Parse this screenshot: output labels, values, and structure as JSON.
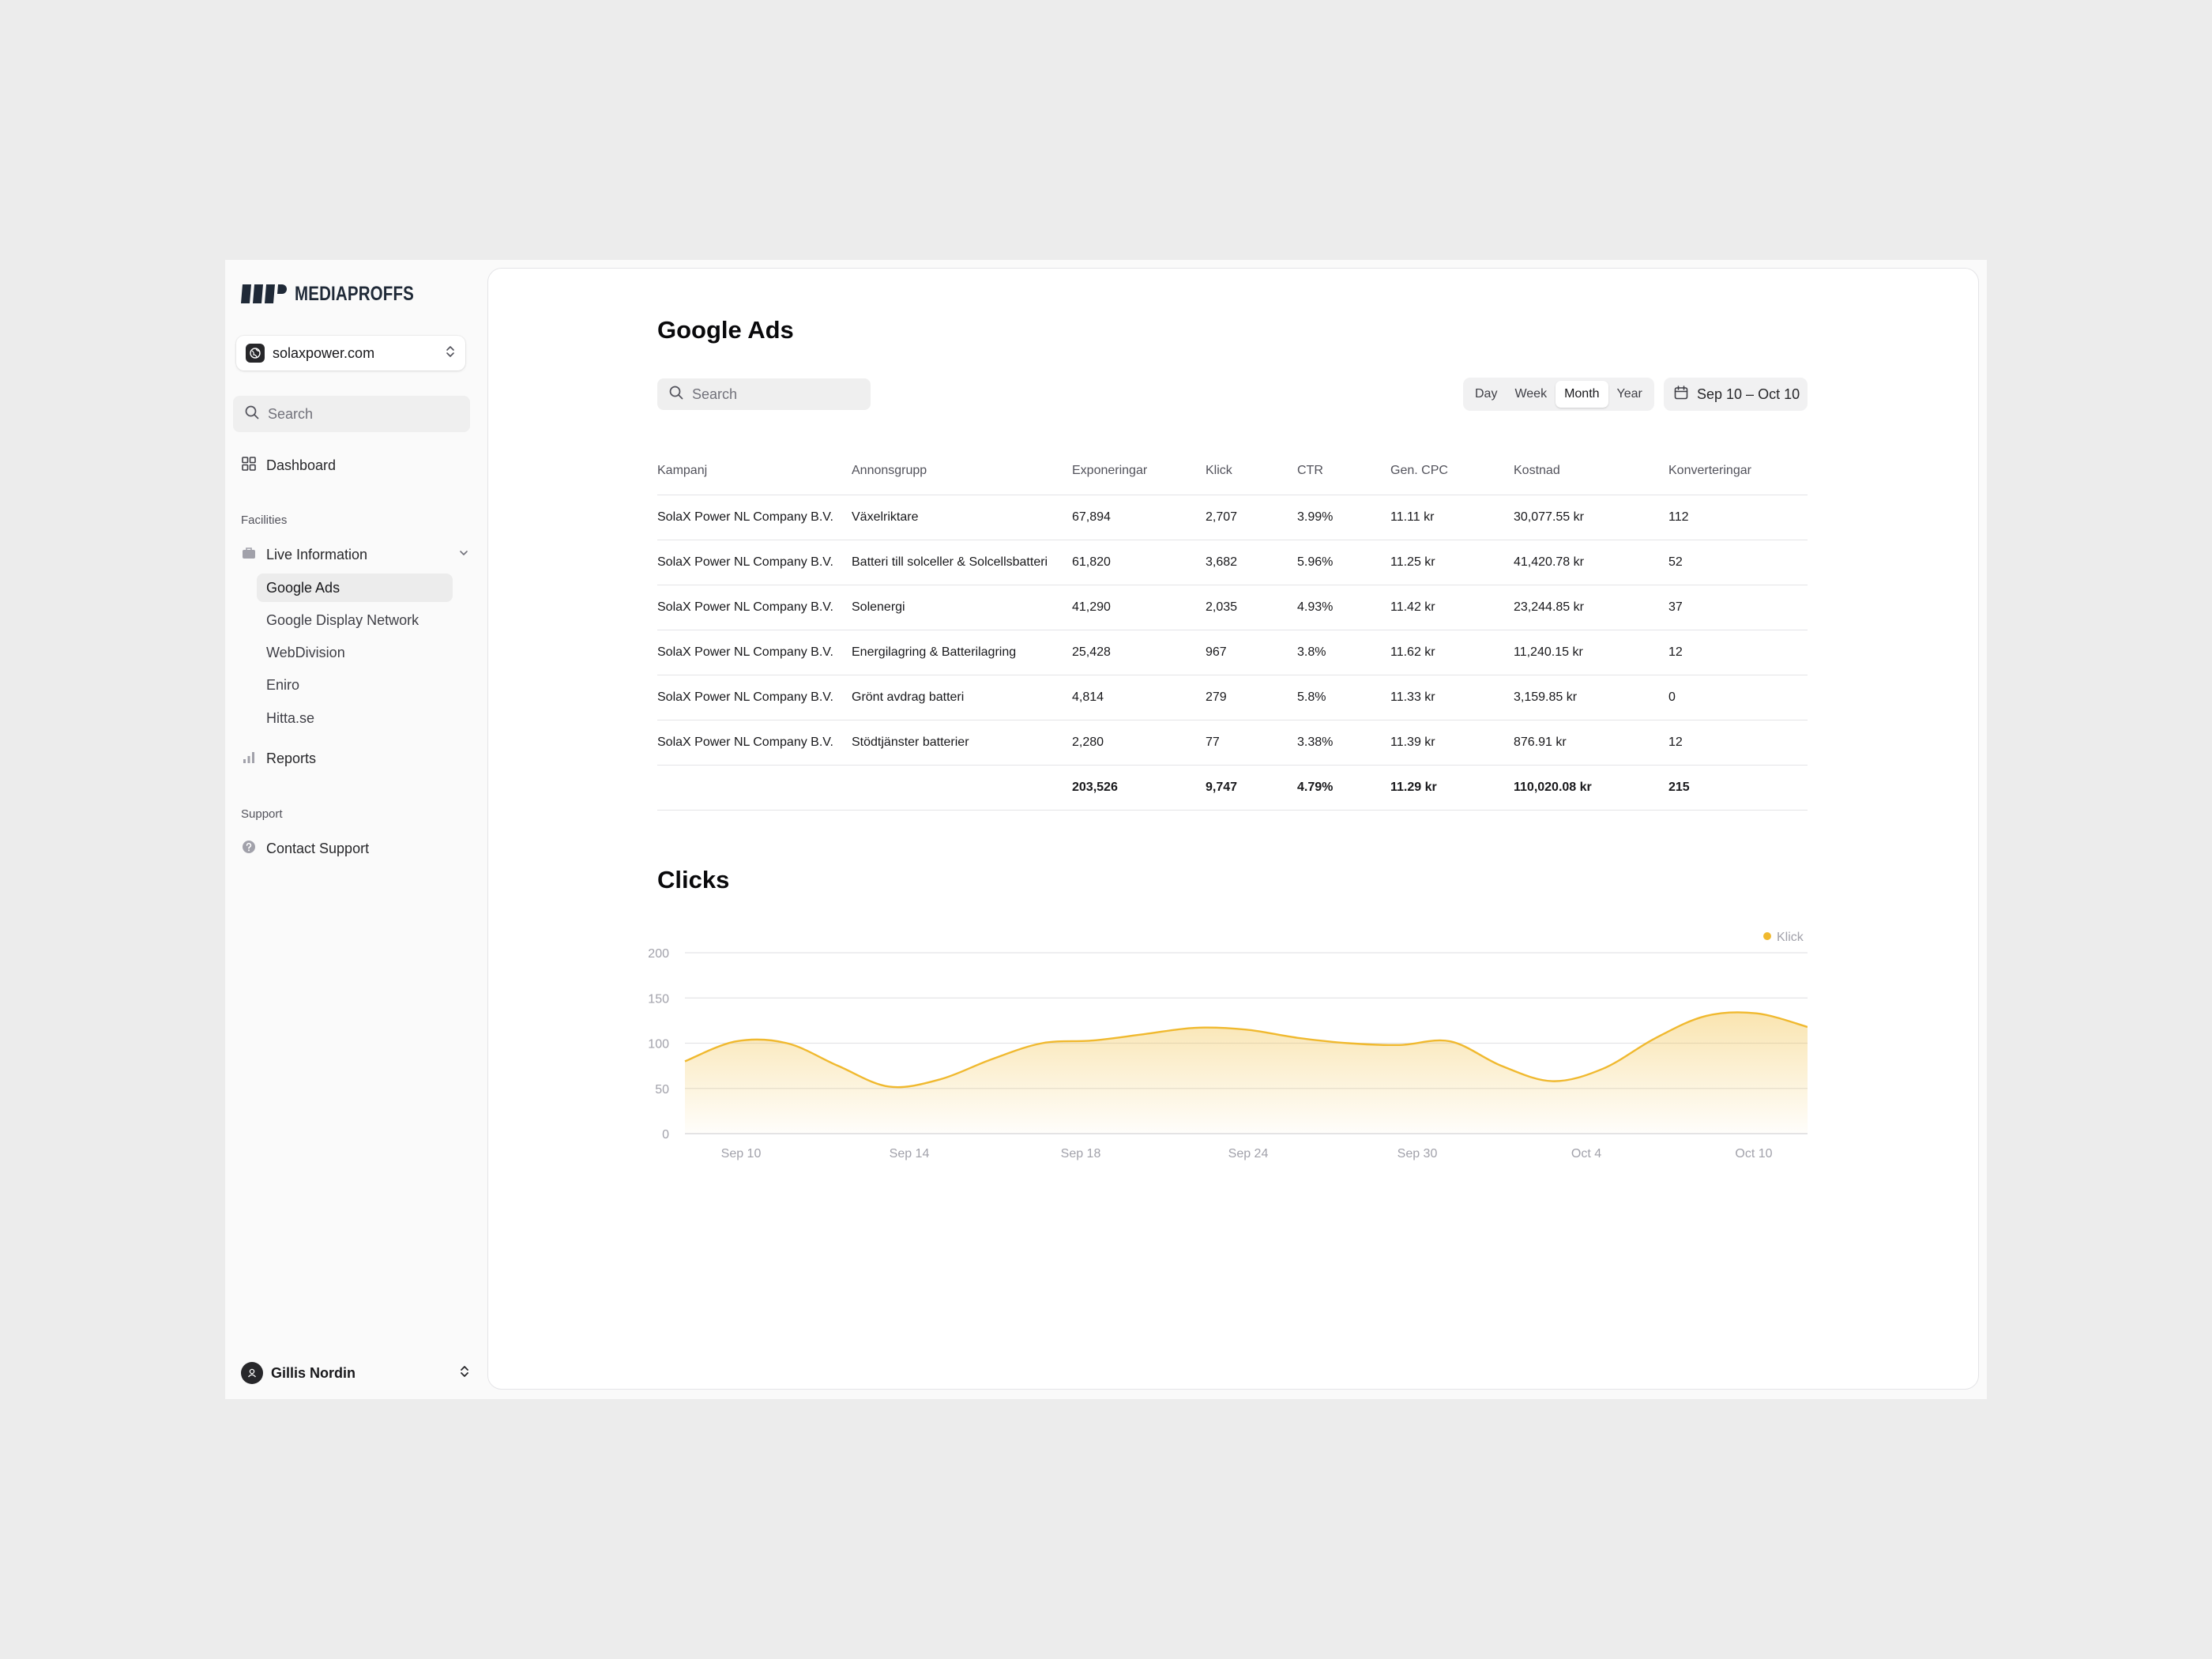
{
  "brand": {
    "name": "MEDIAPROFFS"
  },
  "site_selector": {
    "value": "solaxpower.com"
  },
  "sidebar": {
    "search_placeholder": "Search",
    "dashboard": "Dashboard",
    "section_facilities": "Facilities",
    "live_information": "Live Information",
    "sub_items": [
      "Google Ads",
      "Google Display Network",
      "WebDivision",
      "Eniro",
      "Hitta.se"
    ],
    "active_sub_item": "Google Ads",
    "reports": "Reports",
    "section_support": "Support",
    "contact_support": "Contact Support"
  },
  "user": {
    "name": "Gillis Nordin"
  },
  "main": {
    "title": "Google Ads",
    "search_placeholder": "Search",
    "periods": [
      "Day",
      "Week",
      "Month",
      "Year"
    ],
    "active_period": "Month",
    "date_range": "Sep 10 – Oct 10"
  },
  "table": {
    "columns": [
      "Kampanj",
      "Annonsgrupp",
      "Exponeringar",
      "Klick",
      "CTR",
      "Gen. CPC",
      "Kostnad",
      "Konverteringar"
    ],
    "rows": [
      [
        "SolaX Power NL Company B.V.",
        "Växelriktare",
        "67,894",
        "2,707",
        "3.99%",
        "11.11 kr",
        "30,077.55 kr",
        "112"
      ],
      [
        "SolaX Power NL Company B.V.",
        "Batteri till solceller & Solcellsbatteri",
        "61,820",
        "3,682",
        "5.96%",
        "11.25 kr",
        "41,420.78 kr",
        "52"
      ],
      [
        "SolaX Power NL Company B.V.",
        "Solenergi",
        "41,290",
        "2,035",
        "4.93%",
        "11.42 kr",
        "23,244.85 kr",
        "37"
      ],
      [
        "SolaX Power NL Company B.V.",
        "Energilagring & Batterilagring",
        "25,428",
        "967",
        "3.8%",
        "11.62 kr",
        "11,240.15 kr",
        "12"
      ],
      [
        "SolaX Power NL Company B.V.",
        "Grönt avdrag batteri",
        "4,814",
        "279",
        "5.8%",
        "11.33 kr",
        "3,159.85 kr",
        "0"
      ],
      [
        "SolaX Power NL Company B.V.",
        "Stödtjänster batterier",
        "2,280",
        "77",
        "3.38%",
        "11.39 kr",
        "876.91 kr",
        "12"
      ]
    ],
    "totals": [
      "",
      "",
      "203,526",
      "9,747",
      "4.79%",
      "11.29 kr",
      "110,020.08 kr",
      "215"
    ]
  },
  "clicks_section": {
    "title": "Clicks"
  },
  "chart_data": {
    "type": "area",
    "title": "",
    "xlabel": "",
    "ylabel": "",
    "ylim": [
      0,
      200
    ],
    "yticks": [
      0,
      50,
      100,
      150,
      200
    ],
    "x_tick_labels": [
      "Sep 10",
      "Sep 14",
      "Sep 18",
      "Sep 24",
      "Sep 30",
      "Oct 4",
      "Oct 10"
    ],
    "grid": true,
    "legend_position": "top-right",
    "series": [
      {
        "name": "Klick",
        "color": "#f0b92f",
        "values": [
          80,
          102,
          100,
          75,
          52,
          60,
          82,
          100,
          103,
          110,
          117,
          115,
          106,
          100,
          98,
          102,
          75,
          58,
          72,
          105,
          130,
          133,
          118
        ]
      }
    ]
  },
  "colors": {
    "accent": "#f0b92f",
    "sidebar_bg": "#fafafa",
    "page_bg": "#ececec"
  }
}
